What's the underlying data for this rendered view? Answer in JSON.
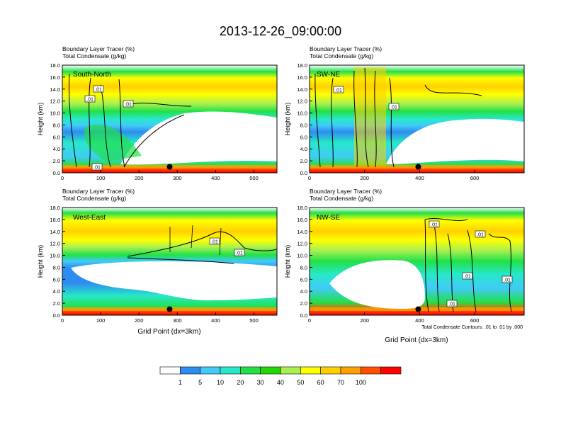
{
  "title": "2013-12-26_09:00:00",
  "panel_header": {
    "line1": "Boundary Layer Tracer   (%)",
    "line2": "Total Condensate   (g/kg)"
  },
  "ylabel": "Height (km)",
  "xlabel": "Grid Point (dx=3km)",
  "contour_note": "Total Condensate Contours: .01 to .01 by .000",
  "contour_label": ".01",
  "colorbar": {
    "levels": [
      "1",
      "5",
      "10",
      "20",
      "30",
      "40",
      "50",
      "60",
      "70",
      "100"
    ],
    "colors": [
      "#ffffff",
      "#2f8cf0",
      "#40cbf8",
      "#27e8c8",
      "#22e048",
      "#22d800",
      "#a8f050",
      "#ffff00",
      "#ffd000",
      "#ffa000",
      "#ff5000",
      "#ff0000"
    ]
  },
  "chart_data": [
    {
      "type": "heatmap",
      "name": "South-North",
      "xlim": [
        0,
        560
      ],
      "ylim": [
        0,
        18
      ],
      "xticks": [
        0,
        100,
        200,
        300,
        400,
        500
      ],
      "xticklabels": [
        "0",
        "100",
        "200",
        "300",
        "400",
        "500"
      ],
      "yticks": [
        0,
        2,
        4,
        6,
        8,
        10,
        12,
        14,
        16,
        18
      ],
      "yticklabels": [
        "0.0",
        "2.0",
        "4.0",
        "6.0",
        "8.0",
        "10.0",
        "12.0",
        "14.0",
        "16.0",
        "18.0"
      ],
      "marker": {
        "x": 280,
        "y": 1.0
      }
    },
    {
      "type": "heatmap",
      "name": "SW-NE",
      "xlim": [
        0,
        780
      ],
      "ylim": [
        0,
        18
      ],
      "xticks": [
        0,
        200,
        400,
        600
      ],
      "xticklabels": [
        "0",
        "200",
        "400",
        "600"
      ],
      "yticks": [
        0,
        2,
        4,
        6,
        8,
        10,
        12,
        14,
        16,
        18
      ],
      "yticklabels": [
        "0.0",
        "2.0",
        "4.0",
        "6.0",
        "8.0",
        "10.0",
        "12.0",
        "14.0",
        "16.0",
        "18.0"
      ],
      "marker": {
        "x": 395,
        "y": 1.0
      }
    },
    {
      "type": "heatmap",
      "name": "West-East",
      "xlim": [
        0,
        560
      ],
      "ylim": [
        0,
        18
      ],
      "xticks": [
        0,
        100,
        200,
        300,
        400,
        500
      ],
      "xticklabels": [
        "0",
        "100",
        "200",
        "300",
        "400",
        "500"
      ],
      "yticks": [
        0,
        2,
        4,
        6,
        8,
        10,
        12,
        14,
        16,
        18
      ],
      "yticklabels": [
        "0.0",
        "2.0",
        "4.0",
        "6.0",
        "8.0",
        "10.0",
        "12.0",
        "14.0",
        "16.0",
        "18.0"
      ],
      "marker": {
        "x": 280,
        "y": 1.0
      }
    },
    {
      "type": "heatmap",
      "name": "NW-SE",
      "xlim": [
        0,
        780
      ],
      "ylim": [
        0,
        18
      ],
      "xticks": [
        0,
        200,
        400,
        600
      ],
      "xticklabels": [
        "0",
        "200",
        "400",
        "600"
      ],
      "yticks": [
        0,
        2,
        4,
        6,
        8,
        10,
        12,
        14,
        16,
        18
      ],
      "yticklabels": [
        "0.0",
        "2.0",
        "4.0",
        "6.0",
        "8.0",
        "10.0",
        "12.0",
        "14.0",
        "16.0",
        "18.0"
      ],
      "marker": {
        "x": 395,
        "y": 1.0
      }
    }
  ]
}
